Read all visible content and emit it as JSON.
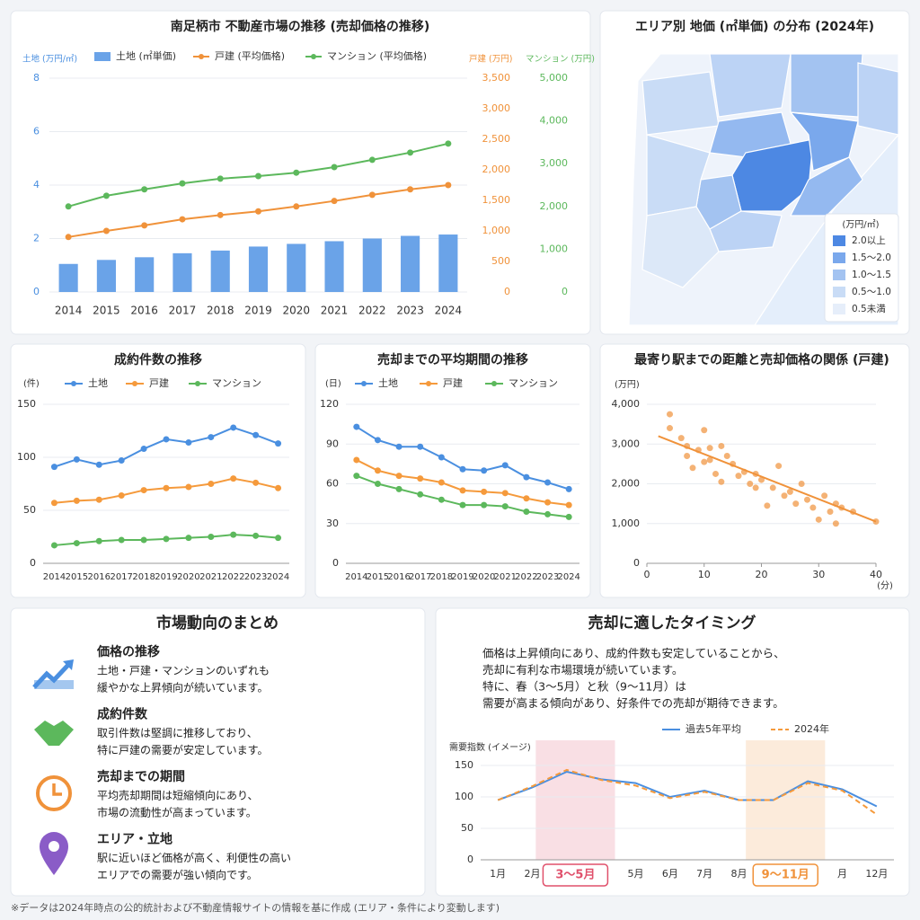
{
  "chart_data": [
    {
      "type": "combo",
      "title": "南足柄市 不動産市場の推移 (売却価格の推移)",
      "categories": [
        "2014",
        "2015",
        "2016",
        "2017",
        "2018",
        "2019",
        "2020",
        "2021",
        "2022",
        "2023",
        "2024"
      ],
      "ylabel": "土地 (万円/㎡)",
      "y2label": "戸建 (万円)",
      "y3label": "マンション (万円)",
      "series": [
        {
          "name": "土地 (㎡単価)",
          "type": "bar",
          "axis": "y",
          "color": "#6aa3e8",
          "values": [
            1.05,
            1.2,
            1.3,
            1.45,
            1.55,
            1.7,
            1.8,
            1.9,
            2.0,
            2.1,
            2.15
          ]
        },
        {
          "name": "戸建 (平均価格)",
          "type": "line",
          "axis": "y2",
          "color": "#f0923a",
          "values": [
            900,
            1000,
            1090,
            1190,
            1260,
            1320,
            1400,
            1490,
            1590,
            1680,
            1750
          ]
        },
        {
          "name": "マンション (平均価格)",
          "type": "line",
          "axis": "y3",
          "color": "#5cb85c",
          "values": [
            2000,
            2250,
            2400,
            2540,
            2650,
            2710,
            2790,
            2920,
            3090,
            3260,
            3470
          ]
        }
      ],
      "ylim": [
        0,
        8
      ],
      "yticks": [
        0,
        2,
        4,
        6,
        8
      ],
      "y2lim": [
        0,
        3500
      ],
      "y2ticks": [
        0,
        500,
        {
          "value": 1000,
          "label": "1,000"
        },
        {
          "value": 1500,
          "label": "1,500"
        },
        {
          "value": 2000,
          "label": "2,000"
        },
        {
          "value": 2500,
          "label": "2,500"
        },
        {
          "value": 3000,
          "label": "3,000"
        },
        {
          "value": 3500,
          "label": "3,500"
        }
      ],
      "y3lim": [
        0,
        5000
      ],
      "y3ticks": [
        0,
        {
          "value": 1000,
          "label": "1,000"
        },
        {
          "value": 2000,
          "label": "2,000"
        },
        {
          "value": 3000,
          "label": "3,000"
        },
        {
          "value": 4000,
          "label": "4,000"
        },
        {
          "value": 5000,
          "label": "5,000"
        }
      ],
      "grid": true
    },
    {
      "type": "line",
      "title": "成約件数の推移",
      "ylabel": "(件)",
      "categories": [
        "2014",
        "2015",
        "2016",
        "2017",
        "2018",
        "2019",
        "2020",
        "2021",
        "2022",
        "2023",
        "2024"
      ],
      "series": [
        {
          "name": "土地",
          "color": "#4a8fe0",
          "values": [
            91,
            98,
            93,
            97,
            108,
            117,
            114,
            119,
            128,
            121,
            113
          ]
        },
        {
          "name": "戸建",
          "color": "#f59a3c",
          "values": [
            57,
            59,
            60,
            64,
            69,
            71,
            72,
            75,
            80,
            76,
            71
          ]
        },
        {
          "name": "マンション",
          "color": "#5cb85c",
          "values": [
            17,
            19,
            21,
            22,
            22,
            23,
            24,
            25,
            27,
            26,
            24
          ]
        }
      ],
      "ylim": [
        0,
        150
      ],
      "yticks": [
        0,
        50,
        100,
        150
      ],
      "grid": true
    },
    {
      "type": "line",
      "title": "売却までの平均期間の推移",
      "ylabel": "(日)",
      "categories": [
        "2014",
        "2015",
        "2016",
        "2017",
        "2018",
        "2019",
        "2020",
        "2021",
        "2022",
        "2023",
        "2024"
      ],
      "series": [
        {
          "name": "土地",
          "color": "#4a8fe0",
          "values": [
            103,
            93,
            88,
            88,
            80,
            71,
            70,
            74,
            65,
            61,
            56
          ]
        },
        {
          "name": "戸建",
          "color": "#f59a3c",
          "values": [
            78,
            70,
            66,
            64,
            61,
            55,
            54,
            53,
            49,
            46,
            44
          ]
        },
        {
          "name": "マンション",
          "color": "#5cb85c",
          "values": [
            66,
            60,
            56,
            52,
            48,
            44,
            44,
            43,
            39,
            37,
            35
          ]
        }
      ],
      "ylim": [
        0,
        120
      ],
      "yticks": [
        0,
        30,
        60,
        90,
        120
      ],
      "grid": true
    },
    {
      "type": "scatter",
      "title": "最寄り駅までの距離と売却価格の関係 (戸建)",
      "xlabel": "(分)",
      "ylabel": "(万円)",
      "color": "#f0923a",
      "x": [
        4,
        4,
        6,
        7,
        7,
        8,
        9,
        10,
        10,
        11,
        11,
        12,
        13,
        13,
        14,
        15,
        16,
        17,
        18,
        19,
        19,
        20,
        21,
        22,
        23,
        24,
        25,
        26,
        27,
        28,
        29,
        30,
        31,
        32,
        33,
        33,
        34,
        36,
        40
      ],
      "y": [
        3750,
        3400,
        3150,
        2950,
        2700,
        2400,
        2850,
        2550,
        3350,
        2900,
        2600,
        2250,
        2950,
        2050,
        2700,
        2500,
        2200,
        2300,
        2000,
        2250,
        1900,
        2100,
        1450,
        1900,
        2450,
        1700,
        1800,
        1500,
        2000,
        1600,
        1400,
        1100,
        1700,
        1300,
        1500,
        1000,
        1400,
        1300,
        1050
      ],
      "trend": {
        "x": [
          2,
          40
        ],
        "y": [
          3200,
          1050
        ]
      },
      "xlim": [
        0,
        40
      ],
      "xticks": [
        0,
        10,
        20,
        30,
        40
      ],
      "ylim": [
        0,
        4000
      ],
      "yticks": [
        0,
        {
          "value": 1000,
          "label": "1,000"
        },
        {
          "value": 2000,
          "label": "2,000"
        },
        {
          "value": 3000,
          "label": "3,000"
        },
        {
          "value": 4000,
          "label": "4,000"
        }
      ],
      "grid": true
    },
    {
      "type": "line",
      "title": "売却に適したタイミング",
      "ylabel": "需要指数 (イメージ)",
      "description": [
        "価格は上昇傾向にあり、成約件数も安定していることから、",
        "売却に有利な市場環境が続いています。",
        "特に、春（3〜5月）と秋（9〜11月）は",
        "需要が高まる傾向があり、好条件での売却が期待できます。"
      ],
      "categories": [
        "1月",
        "2月",
        null,
        null,
        "5月",
        "6月",
        "7月",
        "8月",
        null,
        null,
        "月",
        "12月"
      ],
      "series": [
        {
          "name": "過去5年平均",
          "color": "#4a8fe0",
          "dash": false,
          "values": [
            95,
            115,
            140,
            128,
            122,
            100,
            110,
            95,
            95,
            125,
            112,
            85
          ]
        },
        {
          "name": "2024年",
          "color": "#f59a3c",
          "dash": true,
          "values": [
            95,
            117,
            143,
            127,
            118,
            98,
            108,
            95,
            95,
            122,
            110,
            72
          ]
        }
      ],
      "highlights": [
        {
          "label": "3〜5月",
          "color": "#e0506b"
        },
        {
          "label": "9〜11月",
          "color": "#f0923a"
        }
      ],
      "ylim": [
        0,
        150
      ],
      "yticks": [
        0,
        50,
        100,
        150
      ],
      "grid": true
    }
  ],
  "map": {
    "title": "エリア別 地価 (㎡単価) の分布 (2024年)",
    "legend_title": "(万円/㎡)",
    "legend": [
      {
        "label": "2.0以上",
        "color": "#4d88e3"
      },
      {
        "label": "1.5〜2.0",
        "color": "#7aa8ec"
      },
      {
        "label": "1.0〜1.5",
        "color": "#a3c3f1"
      },
      {
        "label": "0.5〜1.0",
        "color": "#c9dcf6"
      },
      {
        "label": "0.5未満",
        "color": "#e6eefa"
      }
    ]
  },
  "summary": {
    "title": "市場動向のまとめ",
    "items": [
      {
        "title": "価格の推移",
        "lines": [
          "土地・戸建・マンションのいずれも",
          "緩やかな上昇傾向が続いています。"
        ]
      },
      {
        "title": "成約件数",
        "lines": [
          "取引件数は堅調に推移しており、",
          "特に戸建の需要が安定しています。"
        ]
      },
      {
        "title": "売却までの期間",
        "lines": [
          "平均売却期間は短縮傾向にあり、",
          "市場の流動性が高まっています。"
        ]
      },
      {
        "title": "エリア・立地",
        "lines": [
          "駅に近いほど価格が高く、利便性の高い",
          "エリアでの需要が強い傾向です。"
        ]
      }
    ]
  },
  "footnote": "※データは2024年時点の公的統計および不動産情報サイトの情報を基に作成 (エリア・条件により変動します)"
}
